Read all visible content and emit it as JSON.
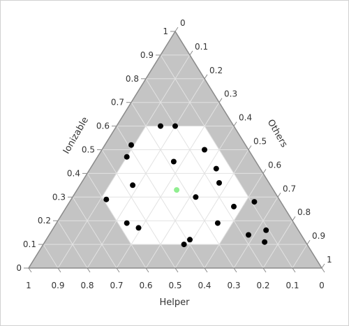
{
  "chart_data": {
    "type": "scatter",
    "subtype": "ternary",
    "title": "",
    "axes": {
      "left": {
        "label": "Ionizable",
        "ticks": [
          "0",
          "0.1",
          "0.2",
          "0.3",
          "0.4",
          "0.5",
          "0.6",
          "0.7",
          "0.8",
          "0.9",
          "1"
        ]
      },
      "right": {
        "label": "Others",
        "ticks": [
          "0",
          "0.1",
          "0.2",
          "0.3",
          "0.4",
          "0.5",
          "0.6",
          "0.7",
          "0.8",
          "0.9",
          "1"
        ]
      },
      "bottom": {
        "label": "Helper",
        "ticks": [
          "1",
          "0.9",
          "0.8",
          "0.7",
          "0.6",
          "0.5",
          "0.4",
          "0.3",
          "0.2",
          "0.1",
          "0"
        ]
      }
    },
    "grid": true,
    "feasible_region": {
      "description": "hexagonal white region; shaded area outside",
      "vertices": [
        {
          "ionizable": 0.6,
          "helper": 0.3,
          "others": 0.1
        },
        {
          "ionizable": 0.6,
          "helper": 0.1,
          "others": 0.3
        },
        {
          "ionizable": 0.3,
          "helper": 0.1,
          "others": 0.6
        },
        {
          "ionizable": 0.1,
          "helper": 0.3,
          "others": 0.6
        },
        {
          "ionizable": 0.1,
          "helper": 0.6,
          "others": 0.3
        },
        {
          "ionizable": 0.3,
          "helper": 0.6,
          "others": 0.1
        }
      ],
      "shaded_color": "#c4c4c4",
      "region_color": "#ffffff"
    },
    "series": [
      {
        "color": "#000000",
        "points": [
          {
            "ionizable": 0.6,
            "helper": 0.25,
            "others": 0.15
          },
          {
            "ionizable": 0.6,
            "helper": 0.2,
            "others": 0.2
          },
          {
            "ionizable": 0.52,
            "helper": 0.39,
            "others": 0.09
          },
          {
            "ionizable": 0.5,
            "helper": 0.15,
            "others": 0.35
          },
          {
            "ionizable": 0.47,
            "helper": 0.43,
            "others": 0.1
          },
          {
            "ionizable": 0.45,
            "helper": 0.28,
            "others": 0.27
          },
          {
            "ionizable": 0.42,
            "helper": 0.15,
            "others": 0.43
          },
          {
            "ionizable": 0.36,
            "helper": 0.17,
            "others": 0.47
          },
          {
            "ionizable": 0.35,
            "helper": 0.47,
            "others": 0.18
          },
          {
            "ionizable": 0.3,
            "helper": 0.28,
            "others": 0.42
          },
          {
            "ionizable": 0.29,
            "helper": 0.59,
            "others": 0.12
          },
          {
            "ionizable": 0.28,
            "helper": 0.09,
            "others": 0.63
          },
          {
            "ionizable": 0.26,
            "helper": 0.17,
            "others": 0.57
          },
          {
            "ionizable": 0.19,
            "helper": 0.26,
            "others": 0.55
          },
          {
            "ionizable": 0.19,
            "helper": 0.57,
            "others": 0.24
          },
          {
            "ionizable": 0.17,
            "helper": 0.54,
            "others": 0.29
          },
          {
            "ionizable": 0.16,
            "helper": 0.11,
            "others": 0.73
          },
          {
            "ionizable": 0.14,
            "helper": 0.18,
            "others": 0.68
          },
          {
            "ionizable": 0.12,
            "helper": 0.39,
            "others": 0.49
          },
          {
            "ionizable": 0.11,
            "helper": 0.14,
            "others": 0.75
          },
          {
            "ionizable": 0.1,
            "helper": 0.42,
            "others": 0.48
          }
        ]
      },
      {
        "color": "#90ee90",
        "points": [
          {
            "ionizable": 0.33,
            "helper": 0.33,
            "others": 0.34
          }
        ]
      }
    ]
  }
}
